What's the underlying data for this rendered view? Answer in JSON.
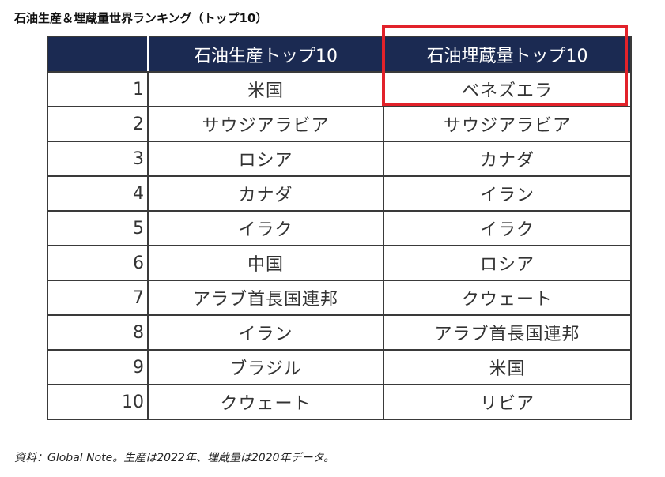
{
  "title": "石油生産＆埋蔵量世界ランキング（トップ10）",
  "table": {
    "headers": {
      "rank": "",
      "production": "石油生産トップ10",
      "reserves": "石油埋蔵量トップ10"
    },
    "rows": [
      {
        "rank": "1",
        "production": "米国",
        "reserves": "ベネズエラ"
      },
      {
        "rank": "2",
        "production": "サウジアラビア",
        "reserves": "サウジアラビア"
      },
      {
        "rank": "3",
        "production": "ロシア",
        "reserves": "カナダ"
      },
      {
        "rank": "4",
        "production": "カナダ",
        "reserves": "イラン"
      },
      {
        "rank": "5",
        "production": "イラク",
        "reserves": "イラク"
      },
      {
        "rank": "6",
        "production": "中国",
        "reserves": "ロシア"
      },
      {
        "rank": "7",
        "production": "アラブ首長国連邦",
        "reserves": "クウェート"
      },
      {
        "rank": "8",
        "production": "イラン",
        "reserves": "アラブ首長国連邦"
      },
      {
        "rank": "9",
        "production": "ブラジル",
        "reserves": "米国"
      },
      {
        "rank": "10",
        "production": "クウェート",
        "reserves": "リビア"
      }
    ]
  },
  "highlight": {
    "color": "#e2222a"
  },
  "colors": {
    "header_bg": "#1b2a52",
    "header_text": "#ffffff",
    "border": "#3a3a3a"
  },
  "footnote": "資料：Global Note。生産は2022年、埋蔵量は2020年データ。"
}
